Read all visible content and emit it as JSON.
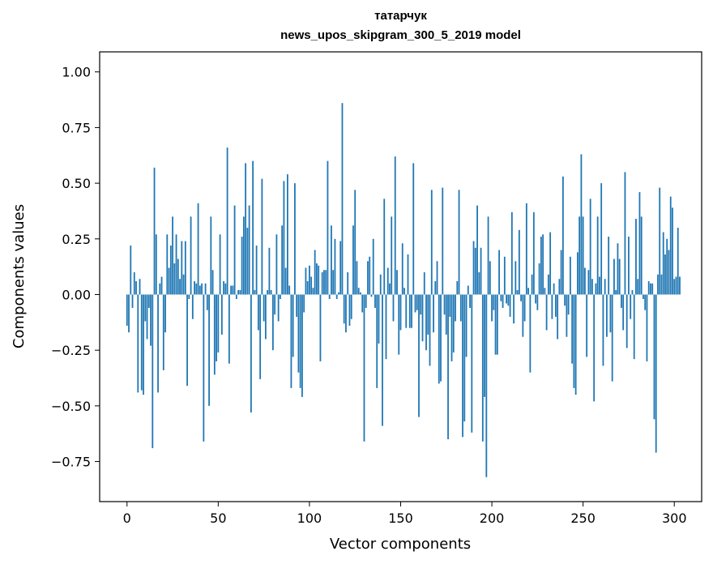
{
  "chart_data": {
    "type": "bar",
    "title": "татарчук",
    "subtitle": "news_upos_skipgram_300_5_2019 model",
    "xlabel": "Vector components",
    "ylabel": "Components values",
    "xlim": [
      -15,
      315
    ],
    "ylim": [
      -0.93,
      1.09
    ],
    "xticks": [
      0,
      50,
      100,
      150,
      200,
      250,
      300
    ],
    "xtick_labels": [
      "0",
      "50",
      "100",
      "150",
      "200",
      "250",
      "300"
    ],
    "yticks": [
      -0.75,
      -0.5,
      -0.25,
      0.0,
      0.25,
      0.5,
      0.75,
      1.0
    ],
    "ytick_labels": [
      "−0.75",
      "−0.50",
      "−0.25",
      "0.00",
      "0.25",
      "0.50",
      "0.75",
      "1.00"
    ],
    "bar_color": "#1f77b4",
    "grid": false,
    "values": [
      -0.14,
      -0.17,
      0.22,
      -0.06,
      0.1,
      0.06,
      -0.44,
      0.07,
      -0.43,
      -0.45,
      -0.12,
      -0.2,
      -0.06,
      -0.23,
      -0.69,
      0.57,
      0.27,
      -0.44,
      0.05,
      0.08,
      -0.34,
      -0.17,
      0.27,
      0.12,
      0.22,
      0.35,
      0.14,
      0.27,
      0.16,
      0.07,
      0.24,
      0.09,
      0.24,
      -0.41,
      -0.02,
      0.35,
      -0.11,
      0.06,
      0.05,
      0.41,
      0.04,
      0.05,
      -0.66,
      0.05,
      -0.07,
      -0.5,
      0.35,
      0.11,
      -0.36,
      -0.3,
      -0.26,
      0.27,
      -0.18,
      0.06,
      0.05,
      0.66,
      -0.31,
      0.04,
      0.04,
      0.4,
      -0.02,
      0.02,
      0.02,
      0.26,
      0.35,
      0.59,
      0.3,
      0.4,
      -0.53,
      0.6,
      0.02,
      0.22,
      -0.16,
      -0.38,
      0.52,
      -0.12,
      -0.2,
      0.02,
      0.21,
      0.02,
      -0.25,
      -0.09,
      0.27,
      -0.12,
      -0.02,
      0.31,
      0.51,
      0.12,
      0.54,
      0.04,
      -0.42,
      -0.28,
      0.5,
      -0.1,
      -0.35,
      -0.42,
      -0.46,
      -0.08,
      0.12,
      0.06,
      0.13,
      0.08,
      0.03,
      0.2,
      0.14,
      0.13,
      -0.3,
      0.1,
      0.11,
      0.11,
      0.6,
      -0.02,
      0.31,
      0.11,
      0.25,
      -0.02,
      0.01,
      0.24,
      0.86,
      -0.13,
      -0.17,
      0.1,
      -0.14,
      -0.11,
      0.31,
      0.47,
      0.15,
      0.03,
      0.01,
      -0.08,
      -0.66,
      -0.06,
      0.15,
      0.17,
      -0.01,
      0.25,
      -0.06,
      -0.42,
      -0.22,
      0.09,
      -0.59,
      0.43,
      -0.29,
      0.12,
      0.05,
      0.35,
      -0.12,
      0.62,
      0.11,
      -0.27,
      -0.16,
      0.23,
      0.03,
      -0.15,
      0.18,
      -0.15,
      -0.15,
      0.59,
      -0.08,
      -0.07,
      -0.55,
      -0.09,
      -0.21,
      0.1,
      -0.25,
      -0.18,
      -0.32,
      0.47,
      -0.17,
      0.06,
      0.15,
      -0.4,
      -0.39,
      0.48,
      -0.09,
      -0.18,
      -0.65,
      -0.1,
      -0.3,
      -0.26,
      -0.12,
      0.06,
      0.47,
      -0.12,
      -0.64,
      -0.57,
      -0.28,
      0.04,
      -0.06,
      -0.62,
      0.24,
      0.21,
      0.4,
      0.1,
      0.21,
      -0.66,
      -0.46,
      -0.82,
      0.35,
      0.15,
      -0.12,
      -0.07,
      -0.27,
      -0.27,
      0.2,
      -0.03,
      -0.06,
      0.17,
      -0.04,
      -0.05,
      -0.1,
      0.37,
      -0.13,
      0.15,
      0.02,
      0.29,
      -0.03,
      -0.19,
      -0.12,
      0.41,
      0.03,
      -0.35,
      0.09,
      0.37,
      -0.04,
      -0.07,
      0.14,
      0.26,
      0.27,
      0.03,
      -0.16,
      0.09,
      0.28,
      -0.11,
      0.05,
      -0.1,
      -0.2,
      0.07,
      0.2,
      0.53,
      -0.05,
      -0.19,
      -0.09,
      0.17,
      -0.31,
      -0.42,
      -0.45,
      0.19,
      0.35,
      0.63,
      0.35,
      0.12,
      -0.28,
      0.11,
      0.43,
      0.07,
      -0.48,
      0.05,
      0.35,
      0.08,
      0.5,
      -0.32,
      0.07,
      -0.19,
      0.26,
      -0.17,
      -0.39,
      0.16,
      0.02,
      0.23,
      0.16,
      -0.06,
      -0.16,
      0.55,
      -0.24,
      0.26,
      -0.11,
      0.02,
      -0.29,
      0.34,
      0.07,
      0.46,
      0.35,
      -0.02,
      -0.07,
      -0.3,
      0.06,
      0.05,
      0.05,
      -0.56,
      -0.71,
      0.09,
      0.48,
      0.09,
      0.28,
      0.18,
      0.25,
      0.2,
      0.44,
      0.39,
      0.07,
      0.08,
      0.3,
      0.08
    ]
  }
}
